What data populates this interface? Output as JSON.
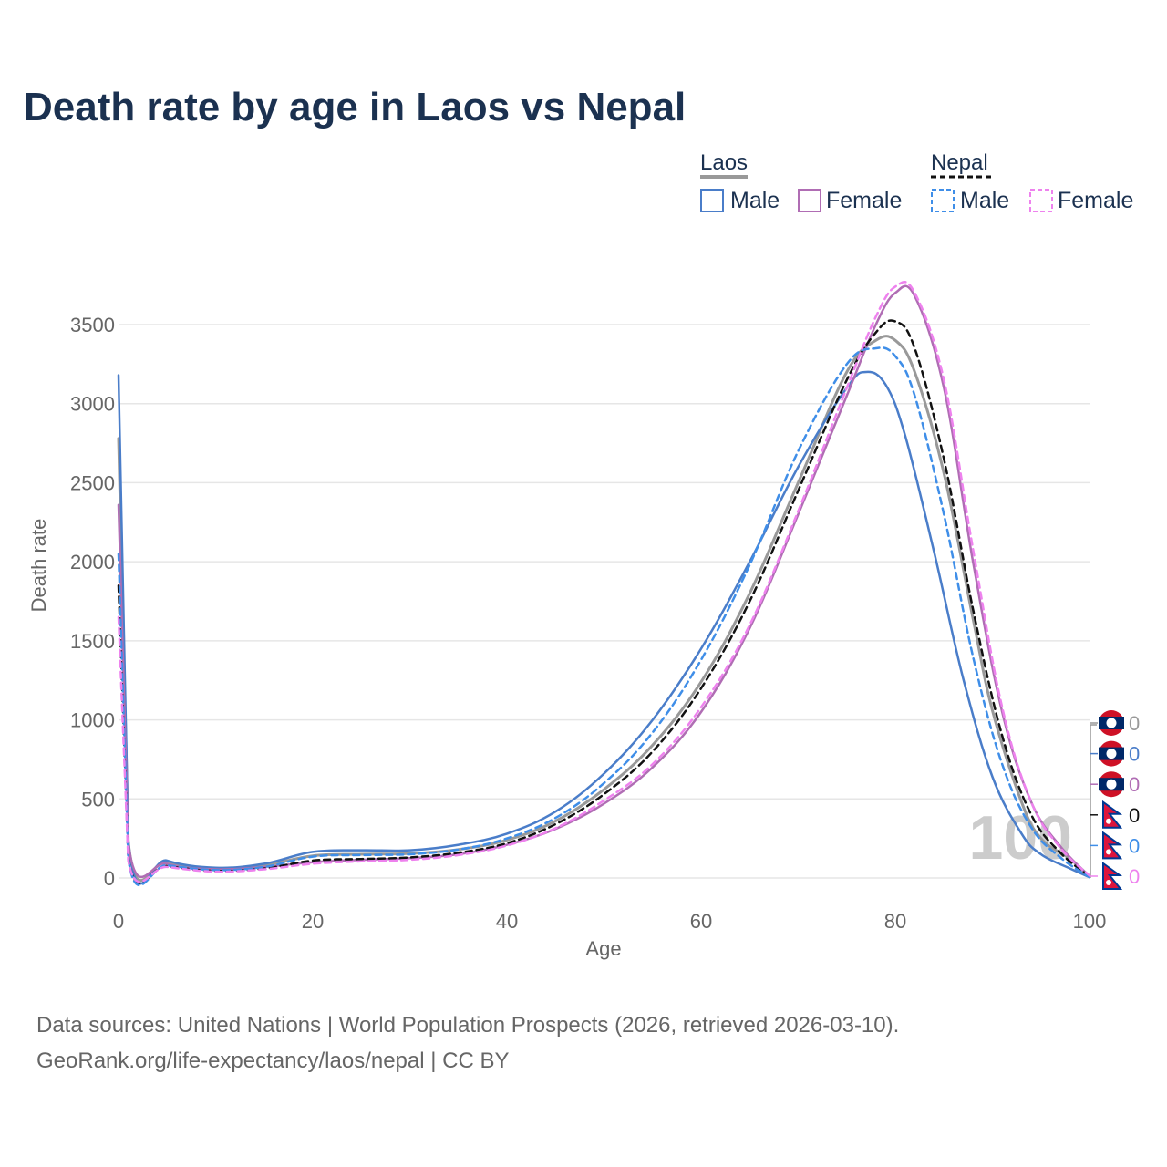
{
  "title": "Death rate by age in Laos vs Nepal",
  "legend": {
    "groups": [
      {
        "name": "Laos",
        "line_color": "#999999",
        "dash": false,
        "items": [
          {
            "label": "Male",
            "color": "#4a7dc9"
          },
          {
            "label": "Female",
            "color": "#b06db4"
          }
        ]
      },
      {
        "name": "Nepal",
        "line_color": "#111111",
        "dash": true,
        "items": [
          {
            "label": "Male",
            "color": "#3f8ee8"
          },
          {
            "label": "Female",
            "color": "#ee82ee"
          }
        ]
      }
    ]
  },
  "current_age_label": "100",
  "footer": {
    "line1": "Data sources: United Nations | World Population Prospects (2026, retrieved 2026-03-10).",
    "line2": "GeoRank.org/life-expectancy/laos/nepal | CC BY"
  },
  "chart_data": {
    "type": "line",
    "xlabel": "Age",
    "ylabel": "Death rate",
    "xlim": [
      0,
      100
    ],
    "ylim": [
      0,
      3800
    ],
    "x_ticks": [
      0,
      20,
      40,
      60,
      80,
      100
    ],
    "y_ticks": [
      0,
      500,
      1000,
      1500,
      2000,
      2500,
      3000,
      3500
    ],
    "grid": true,
    "end_labels": [
      {
        "value": "0",
        "color": "#999999",
        "flag": "laos"
      },
      {
        "value": "0",
        "color": "#4a7dc9",
        "flag": "laos"
      },
      {
        "value": "0",
        "color": "#b06db4",
        "flag": "laos"
      },
      {
        "value": "0",
        "color": "#111111",
        "flag": "nepal"
      },
      {
        "value": "0",
        "color": "#3f8ee8",
        "flag": "nepal"
      },
      {
        "value": "0",
        "color": "#ee82ee",
        "flag": "nepal"
      }
    ],
    "series": [
      {
        "name": "Laos Total",
        "color": "#999999",
        "dash": false,
        "width": 3,
        "x": [
          0,
          1,
          5,
          10,
          15,
          20,
          25,
          30,
          35,
          40,
          45,
          50,
          55,
          60,
          65,
          70,
          75,
          78,
          80,
          82,
          85,
          88,
          90,
          93,
          95,
          98,
          100
        ],
        "y": [
          2780,
          230,
          100,
          60,
          80,
          140,
          150,
          155,
          180,
          240,
          360,
          560,
          840,
          1240,
          1800,
          2500,
          3200,
          3400,
          3400,
          3200,
          2560,
          1640,
          1060,
          480,
          250,
          120,
          10
        ]
      },
      {
        "name": "Laos Male",
        "color": "#4a7dc9",
        "dash": false,
        "width": 2.5,
        "x": [
          0,
          1,
          5,
          10,
          15,
          20,
          25,
          30,
          35,
          40,
          45,
          50,
          55,
          60,
          65,
          70,
          75,
          77,
          79,
          81,
          84,
          87,
          90,
          93,
          95,
          98,
          100
        ],
        "y": [
          3180,
          240,
          110,
          65,
          90,
          165,
          175,
          175,
          210,
          280,
          420,
          660,
          1000,
          1450,
          2000,
          2600,
          3100,
          3200,
          3120,
          2800,
          2060,
          1260,
          640,
          280,
          150,
          60,
          5
        ]
      },
      {
        "name": "Laos Female",
        "color": "#b06db4",
        "dash": false,
        "width": 2.5,
        "x": [
          0,
          1,
          5,
          10,
          15,
          20,
          25,
          30,
          35,
          40,
          45,
          50,
          55,
          60,
          65,
          70,
          75,
          78,
          80,
          82,
          85,
          88,
          91,
          94,
          97,
          100
        ],
        "y": [
          2360,
          220,
          90,
          55,
          70,
          100,
          115,
          125,
          150,
          210,
          310,
          470,
          700,
          1050,
          1580,
          2300,
          3050,
          3500,
          3700,
          3680,
          3100,
          2000,
          1050,
          480,
          200,
          10
        ]
      },
      {
        "name": "Nepal Total",
        "color": "#111111",
        "dash": true,
        "width": 2.5,
        "x": [
          0,
          1,
          5,
          10,
          15,
          20,
          25,
          30,
          35,
          40,
          45,
          50,
          55,
          60,
          65,
          70,
          75,
          78,
          80,
          82,
          85,
          88,
          91,
          94,
          97,
          100
        ],
        "y": [
          1850,
          120,
          75,
          45,
          60,
          110,
          120,
          130,
          160,
          220,
          340,
          530,
          800,
          1200,
          1750,
          2450,
          3150,
          3450,
          3520,
          3350,
          2650,
          1700,
          900,
          400,
          160,
          10
        ]
      },
      {
        "name": "Nepal Male",
        "color": "#3f8ee8",
        "dash": true,
        "width": 2.5,
        "x": [
          0,
          1,
          5,
          10,
          15,
          20,
          25,
          30,
          35,
          40,
          45,
          50,
          55,
          60,
          65,
          70,
          75,
          78,
          80,
          82,
          85,
          88,
          91,
          94,
          97,
          100
        ],
        "y": [
          2050,
          120,
          80,
          50,
          70,
          135,
          145,
          150,
          180,
          250,
          380,
          600,
          920,
          1380,
          1980,
          2700,
          3250,
          3350,
          3300,
          3050,
          2300,
          1400,
          720,
          320,
          130,
          5
        ]
      },
      {
        "name": "Nepal Female",
        "color": "#ee82ee",
        "dash": true,
        "width": 2.5,
        "x": [
          0,
          1,
          5,
          10,
          15,
          20,
          25,
          30,
          35,
          40,
          45,
          50,
          55,
          60,
          65,
          70,
          75,
          78,
          80,
          82,
          85,
          88,
          91,
          94,
          97,
          100
        ],
        "y": [
          1650,
          110,
          70,
          40,
          55,
          90,
          105,
          115,
          145,
          205,
          315,
          490,
          720,
          1080,
          1600,
          2320,
          3100,
          3550,
          3740,
          3700,
          3150,
          2080,
          1080,
          480,
          190,
          15
        ]
      }
    ]
  }
}
